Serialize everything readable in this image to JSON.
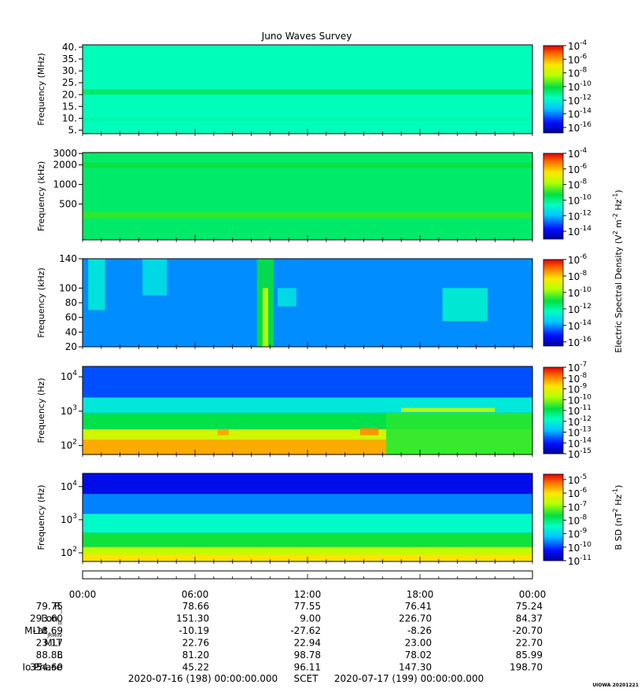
{
  "chart_data": {
    "type": "heatmap",
    "title": "Juno Waves Survey",
    "panels": [
      {
        "ylabel": "Frequency (MHz)",
        "yscale": "linear",
        "ylim": [
          3.5,
          41
        ],
        "yticks": [
          {
            "v": 40,
            "t": "40."
          },
          {
            "v": 35,
            "t": "35."
          },
          {
            "v": 30,
            "t": "30."
          },
          {
            "v": 25,
            "t": "25."
          },
          {
            "v": 20,
            "t": "20."
          },
          {
            "v": 15,
            "t": "15."
          },
          {
            "v": 10,
            "t": "10."
          },
          {
            "v": 5,
            "t": "5."
          }
        ],
        "colorbar": {
          "min": -16.8,
          "max": -4,
          "ticks": [
            -4,
            -6,
            -8,
            -10,
            -12,
            -14,
            -16
          ],
          "label": ""
        },
        "background": -11.6,
        "bands": [
          {
            "ylo": 20.0,
            "yhi": 22.2,
            "level": -10.6
          },
          {
            "ylo": 9.0,
            "yhi": 10.0,
            "level": -11.3
          }
        ],
        "features": []
      },
      {
        "ylabel": "Frequency (kHz)",
        "yscale": "log",
        "ylim": [
          140,
          3100
        ],
        "yticks": [
          {
            "v": 3000,
            "t": "3000"
          },
          {
            "v": 2000,
            "t": "2000"
          },
          {
            "v": 1000,
            "t": "1000"
          },
          {
            "v": 500,
            "t": "500"
          }
        ],
        "colorbar": {
          "min": -15,
          "max": -4,
          "ticks": [
            -4,
            -6,
            -8,
            -10,
            -12,
            -14
          ],
          "label": ""
        },
        "background": -9.7,
        "bands": [
          {
            "ylo": 300,
            "yhi": 380,
            "level": -8.9
          },
          {
            "ylo": 1800,
            "yhi": 2150,
            "level": -9.2
          }
        ],
        "features": []
      },
      {
        "ylabel": "Frequency (kHz)",
        "yscale": "linear",
        "ylim": [
          20,
          140
        ],
        "yticks": [
          {
            "v": 140,
            "t": "140"
          },
          {
            "v": 100,
            "t": "100"
          },
          {
            "v": 80,
            "t": "80"
          },
          {
            "v": 60,
            "t": "60"
          },
          {
            "v": 40,
            "t": "40"
          },
          {
            "v": 20,
            "t": "20"
          }
        ],
        "colorbar": {
          "min": -16.5,
          "max": -6,
          "ticks": [
            -6,
            -8,
            -10,
            -12,
            -14,
            -16
          ],
          "label": "Electric Spectral Density (V^2 m^-2 Hz^-1)"
        },
        "background": -14.1,
        "bands": [],
        "features": [
          {
            "t0": 9.3,
            "t1": 10.2,
            "ylo": 20,
            "yhi": 140,
            "level": -11.0
          },
          {
            "t0": 9.6,
            "t1": 9.9,
            "ylo": 20,
            "yhi": 100,
            "level": -9.4
          },
          {
            "t0": 0.3,
            "t1": 1.2,
            "ylo": 70,
            "yhi": 140,
            "level": -12.8
          },
          {
            "t0": 3.2,
            "t1": 4.5,
            "ylo": 90,
            "yhi": 140,
            "level": -13.0
          },
          {
            "t0": 10.4,
            "t1": 11.4,
            "ylo": 75,
            "yhi": 100,
            "level": -13.0
          },
          {
            "t0": 19.2,
            "t1": 21.6,
            "ylo": 55,
            "yhi": 100,
            "level": -12.6
          }
        ]
      },
      {
        "ylabel": "Frequency (Hz)",
        "yscale": "log",
        "ylim": [
          55,
          20000
        ],
        "yticks": [
          {
            "v": 10000,
            "t": "10^4"
          },
          {
            "v": 1000,
            "t": "10^3"
          },
          {
            "v": 100,
            "t": "10^2"
          }
        ],
        "colorbar": {
          "min": -15,
          "max": -7,
          "ticks": [
            -7,
            -8,
            -9,
            -10,
            -11,
            -12,
            -13,
            -14,
            -15
          ],
          "label": ""
        },
        "background": -13.6,
        "bands": [
          {
            "ylo": 2500,
            "yhi": 20000,
            "level": -13.6
          },
          {
            "ylo": 900,
            "yhi": 2500,
            "level": -12.2
          },
          {
            "ylo": 300,
            "yhi": 900,
            "level": -10.9
          },
          {
            "ylo": 55,
            "yhi": 300,
            "level": -9.4
          }
        ],
        "features": [
          {
            "t0": 0.0,
            "t1": 16.2,
            "ylo": 55,
            "yhi": 150,
            "level": -8.2
          },
          {
            "t0": 16.2,
            "t1": 24.0,
            "ylo": 55,
            "yhi": 900,
            "level": -10.6
          },
          {
            "t0": 17.0,
            "t1": 22.0,
            "ylo": 950,
            "yhi": 1250,
            "level": -9.6
          },
          {
            "t0": 14.8,
            "t1": 15.8,
            "ylo": 200,
            "yhi": 320,
            "level": -8.0
          },
          {
            "t0": 7.2,
            "t1": 7.8,
            "ylo": 200,
            "yhi": 300,
            "level": -8.2
          }
        ]
      },
      {
        "ylabel": "Frequency (Hz)",
        "yscale": "log",
        "ylim": [
          55,
          25000
        ],
        "yticks": [
          {
            "v": 10000,
            "t": "10^4"
          },
          {
            "v": 1000,
            "t": "10^3"
          },
          {
            "v": 100,
            "t": "10^2"
          }
        ],
        "colorbar": {
          "min": -11,
          "max": -4.6,
          "ticks": [
            -5,
            -6,
            -7,
            -8,
            -9,
            -10,
            -11
          ],
          "label": "B SD (nT^2 Hz^-1)"
        },
        "background": -10.4,
        "bands": [
          {
            "ylo": 6000,
            "yhi": 25000,
            "level": -10.4
          },
          {
            "ylo": 1500,
            "yhi": 6000,
            "level": -9.6
          },
          {
            "ylo": 400,
            "yhi": 1500,
            "level": -8.5
          },
          {
            "ylo": 150,
            "yhi": 400,
            "level": -7.6
          },
          {
            "ylo": 90,
            "yhi": 150,
            "level": -6.7
          },
          {
            "ylo": 55,
            "yhi": 90,
            "level": -6.0
          }
        ],
        "features": []
      }
    ],
    "time_axis": {
      "range_hours": [
        0,
        24
      ],
      "ticks": [
        {
          "h": 0,
          "t": "00:00"
        },
        {
          "h": 6,
          "t": "06:00"
        },
        {
          "h": 12,
          "t": "12:00"
        },
        {
          "h": 18,
          "t": "18:00"
        },
        {
          "h": 24,
          "t": "00:00"
        }
      ]
    },
    "ephemeris": [
      {
        "label": "R_J",
        "values": [
          "79.75",
          "78.66",
          "77.55",
          "76.41",
          "75.24"
        ]
      },
      {
        "label": "Lon_III",
        "values": [
          "293.60",
          "151.30",
          "9.00",
          "226.70",
          "84.37"
        ]
      },
      {
        "label": "MLat_JRM09",
        "values": [
          "-18.69",
          "-10.19",
          "-27.62",
          "-8.26",
          "-20.70"
        ]
      },
      {
        "label": "MLT",
        "values": [
          "23.17",
          "22.76",
          "22.94",
          "23.00",
          "22.70"
        ]
      },
      {
        "label": "L",
        "values": [
          "88.88",
          "81.20",
          "98.78",
          "78.02",
          "85.99"
        ]
      },
      {
        "label": "Io Phase",
        "values": [
          "354.60",
          "45.22",
          "96.11",
          "147.30",
          "198.70"
        ]
      }
    ],
    "footer": {
      "start": "2020-07-16 (198) 00:00:00.000",
      "scet": "SCET",
      "end": "2020-07-17 (199) 00:00:00.000",
      "stamp": "UIOWA 20201221"
    }
  }
}
